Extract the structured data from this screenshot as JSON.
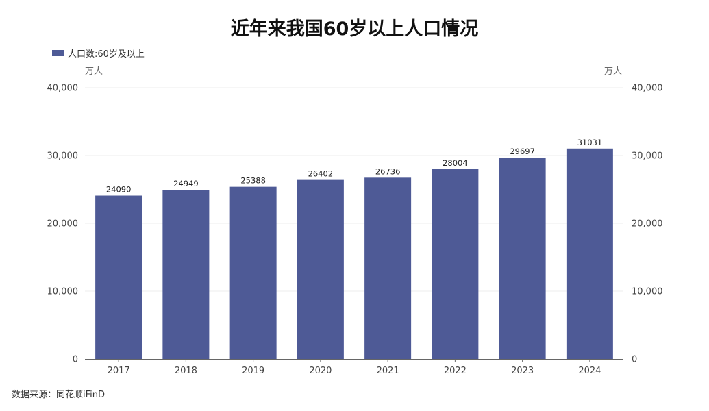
{
  "chart_data": {
    "type": "bar",
    "title": "近年来我国60岁以上人口情况",
    "categories": [
      "2017",
      "2018",
      "2019",
      "2020",
      "2021",
      "2022",
      "2023",
      "2024"
    ],
    "series": [
      {
        "name": "人口数:60岁及以上",
        "values": [
          24090,
          24949,
          25388,
          26402,
          26736,
          28004,
          29697,
          31031
        ],
        "color": "#4e5a96"
      }
    ],
    "y_unit_left": "万人",
    "y_unit_right": "万人",
    "ylim": [
      0,
      40000
    ],
    "yticks": [
      0,
      10000,
      20000,
      30000,
      40000
    ],
    "ytick_labels": [
      "0",
      "10,000",
      "20,000",
      "30,000",
      "40,000"
    ],
    "grid": true,
    "legend_position": "top-left",
    "source": "数据来源：同花顺iFinD"
  }
}
